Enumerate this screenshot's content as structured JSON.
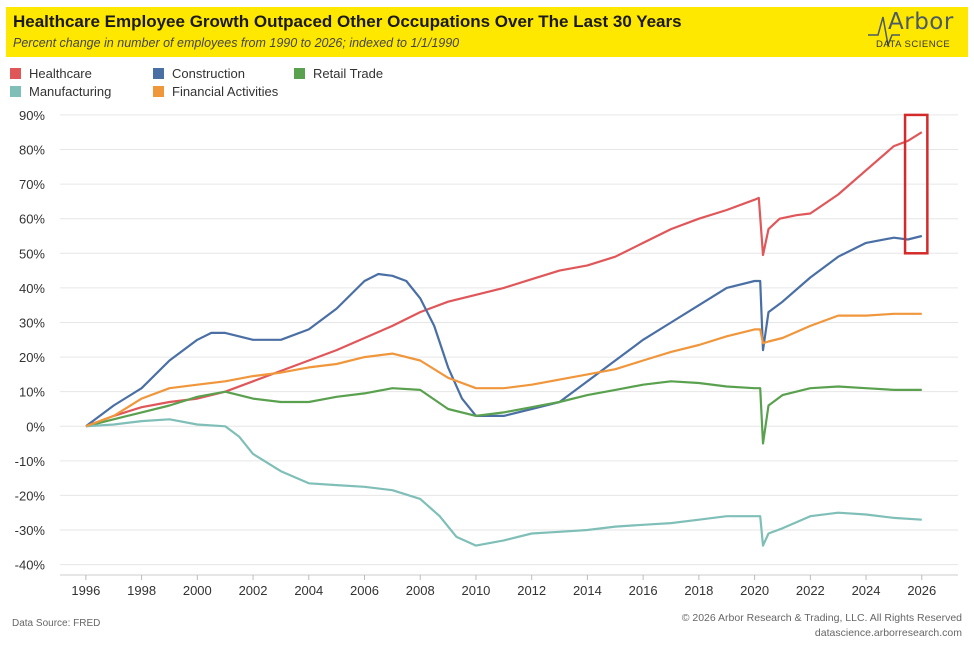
{
  "header": {
    "title": "Healthcare Employee Growth Outpaced Other Occupations Over The Last 30 Years",
    "subtitle": "Percent change in number of employees from 1990 to 2026; indexed to 1/1/1990"
  },
  "logo": {
    "word": "Arbor",
    "sub": "DATA SCIENCE"
  },
  "footer": {
    "source": "Data Source: FRED",
    "copyright": "© 2026 Arbor Research & Trading, LLC. All Rights Reserved",
    "url": "datascience.arborresearch.com"
  },
  "colors": {
    "banner": "#ffe800",
    "grid": "#e6e6e6",
    "highlight": "#d42a2a"
  },
  "chart_data": {
    "type": "line",
    "title": "Healthcare Employee Growth Outpaced Other Occupations Over The Last 30 Years",
    "xlabel": "",
    "ylabel": "",
    "xlim": [
      1995,
      2027.3
    ],
    "ylim": [
      -43,
      92
    ],
    "grid": true,
    "legend": "top-left",
    "x_ticks": [
      1996,
      1998,
      2000,
      2002,
      2004,
      2006,
      2008,
      2010,
      2012,
      2014,
      2016,
      2018,
      2020,
      2022,
      2024,
      2026
    ],
    "y_ticks": [
      90,
      80,
      70,
      60,
      50,
      40,
      30,
      20,
      10,
      0,
      -10,
      -20,
      -30,
      -40
    ],
    "y_tick_labels": [
      "90%",
      "80%",
      "70%",
      "60%",
      "50%",
      "40%",
      "30%",
      "20%",
      "10%",
      "0%",
      "-10%",
      "-20%",
      "-30%",
      "-40%"
    ],
    "highlight_box": {
      "x_range": [
        2025.4,
        2026.2
      ],
      "y_range": [
        50,
        90
      ]
    },
    "series": [
      {
        "name": "Healthcare",
        "color": "#e0575a",
        "points": [
          [
            1996,
            0
          ],
          [
            1997,
            3
          ],
          [
            1998,
            5.5
          ],
          [
            1999,
            7
          ],
          [
            2000,
            8
          ],
          [
            2001,
            10
          ],
          [
            2002,
            13
          ],
          [
            2003,
            16
          ],
          [
            2004,
            19
          ],
          [
            2005,
            22
          ],
          [
            2006,
            25.5
          ],
          [
            2007,
            29
          ],
          [
            2008,
            33
          ],
          [
            2009,
            36
          ],
          [
            2010,
            38
          ],
          [
            2011,
            40
          ],
          [
            2012,
            42.5
          ],
          [
            2013,
            45
          ],
          [
            2014,
            46.5
          ],
          [
            2015,
            49
          ],
          [
            2016,
            53
          ],
          [
            2017,
            57
          ],
          [
            2018,
            60
          ],
          [
            2019,
            62.5
          ],
          [
            2020.0,
            65.5
          ],
          [
            2020.15,
            66
          ],
          [
            2020.3,
            49.5
          ],
          [
            2020.5,
            57
          ],
          [
            2020.9,
            60
          ],
          [
            2021.5,
            61
          ],
          [
            2022,
            61.5
          ],
          [
            2023,
            67
          ],
          [
            2024,
            74
          ],
          [
            2025,
            81
          ],
          [
            2025.5,
            82.5
          ],
          [
            2026,
            85
          ]
        ]
      },
      {
        "name": "Construction",
        "color": "#4a6fa5",
        "points": [
          [
            1996,
            0
          ],
          [
            1997,
            6
          ],
          [
            1998,
            11
          ],
          [
            1999,
            19
          ],
          [
            2000,
            25
          ],
          [
            2000.5,
            27
          ],
          [
            2001,
            27
          ],
          [
            2002,
            25
          ],
          [
            2003,
            25
          ],
          [
            2004,
            28
          ],
          [
            2005,
            34
          ],
          [
            2006,
            42
          ],
          [
            2006.5,
            44
          ],
          [
            2007,
            43.5
          ],
          [
            2007.5,
            42
          ],
          [
            2008,
            37
          ],
          [
            2008.5,
            29
          ],
          [
            2009,
            17
          ],
          [
            2009.5,
            8
          ],
          [
            2010,
            3
          ],
          [
            2011,
            3
          ],
          [
            2012,
            5
          ],
          [
            2013,
            7
          ],
          [
            2014,
            13
          ],
          [
            2015,
            19
          ],
          [
            2016,
            25
          ],
          [
            2017,
            30
          ],
          [
            2018,
            35
          ],
          [
            2019,
            40
          ],
          [
            2020.0,
            42
          ],
          [
            2020.2,
            42
          ],
          [
            2020.3,
            22
          ],
          [
            2020.5,
            33
          ],
          [
            2021,
            36
          ],
          [
            2022,
            43
          ],
          [
            2023,
            49
          ],
          [
            2024,
            53
          ],
          [
            2025,
            54.5
          ],
          [
            2025.5,
            54
          ],
          [
            2026,
            55
          ]
        ]
      },
      {
        "name": "Retail Trade",
        "color": "#5aa14f",
        "points": [
          [
            1996,
            0
          ],
          [
            1997,
            2
          ],
          [
            1998,
            4
          ],
          [
            1999,
            6
          ],
          [
            2000,
            8.5
          ],
          [
            2001,
            10
          ],
          [
            2002,
            8
          ],
          [
            2003,
            7
          ],
          [
            2004,
            7
          ],
          [
            2005,
            8.5
          ],
          [
            2006,
            9.5
          ],
          [
            2007,
            11
          ],
          [
            2008,
            10.5
          ],
          [
            2009,
            5
          ],
          [
            2010,
            3
          ],
          [
            2011,
            4
          ],
          [
            2012,
            5.5
          ],
          [
            2013,
            7
          ],
          [
            2014,
            9
          ],
          [
            2015,
            10.5
          ],
          [
            2016,
            12
          ],
          [
            2017,
            13
          ],
          [
            2018,
            12.5
          ],
          [
            2019,
            11.5
          ],
          [
            2020.0,
            11
          ],
          [
            2020.2,
            11
          ],
          [
            2020.3,
            -5
          ],
          [
            2020.5,
            6
          ],
          [
            2021,
            9
          ],
          [
            2022,
            11
          ],
          [
            2023,
            11.5
          ],
          [
            2024,
            11
          ],
          [
            2025,
            10.5
          ],
          [
            2026,
            10.5
          ]
        ]
      },
      {
        "name": "Manufacturing",
        "color": "#7fbfb8",
        "points": [
          [
            1996,
            0
          ],
          [
            1997,
            0.5
          ],
          [
            1998,
            1.5
          ],
          [
            1999,
            2
          ],
          [
            2000,
            0.5
          ],
          [
            2001,
            0
          ],
          [
            2001.5,
            -3
          ],
          [
            2002,
            -8
          ],
          [
            2003,
            -13
          ],
          [
            2004,
            -16.5
          ],
          [
            2005,
            -17
          ],
          [
            2006,
            -17.5
          ],
          [
            2007,
            -18.5
          ],
          [
            2008,
            -21
          ],
          [
            2008.7,
            -26
          ],
          [
            2009.3,
            -32
          ],
          [
            2010,
            -34.5
          ],
          [
            2011,
            -33
          ],
          [
            2012,
            -31
          ],
          [
            2013,
            -30.5
          ],
          [
            2014,
            -30
          ],
          [
            2015,
            -29
          ],
          [
            2016,
            -28.5
          ],
          [
            2017,
            -28
          ],
          [
            2018,
            -27
          ],
          [
            2019,
            -26
          ],
          [
            2020.0,
            -26
          ],
          [
            2020.2,
            -26
          ],
          [
            2020.3,
            -34.5
          ],
          [
            2020.5,
            -31
          ],
          [
            2021,
            -29.5
          ],
          [
            2022,
            -26
          ],
          [
            2023,
            -25
          ],
          [
            2024,
            -25.5
          ],
          [
            2025,
            -26.5
          ],
          [
            2026,
            -27
          ]
        ]
      },
      {
        "name": "Financial Activities",
        "color": "#f0963b",
        "points": [
          [
            1996,
            0
          ],
          [
            1997,
            3
          ],
          [
            1998,
            8
          ],
          [
            1999,
            11
          ],
          [
            2000,
            12
          ],
          [
            2001,
            13
          ],
          [
            2002,
            14.5
          ],
          [
            2003,
            15.5
          ],
          [
            2004,
            17
          ],
          [
            2005,
            18
          ],
          [
            2006,
            20
          ],
          [
            2007,
            21
          ],
          [
            2008,
            19
          ],
          [
            2009,
            14
          ],
          [
            2010,
            11
          ],
          [
            2011,
            11
          ],
          [
            2012,
            12
          ],
          [
            2013,
            13.5
          ],
          [
            2014,
            15
          ],
          [
            2015,
            16.5
          ],
          [
            2016,
            19
          ],
          [
            2017,
            21.5
          ],
          [
            2018,
            23.5
          ],
          [
            2019,
            26
          ],
          [
            2020.0,
            28
          ],
          [
            2020.2,
            28
          ],
          [
            2020.3,
            24
          ],
          [
            2020.5,
            24.5
          ],
          [
            2021,
            25.5
          ],
          [
            2022,
            29
          ],
          [
            2023,
            32
          ],
          [
            2024,
            32
          ],
          [
            2025,
            32.5
          ],
          [
            2026,
            32.5
          ]
        ]
      }
    ]
  }
}
